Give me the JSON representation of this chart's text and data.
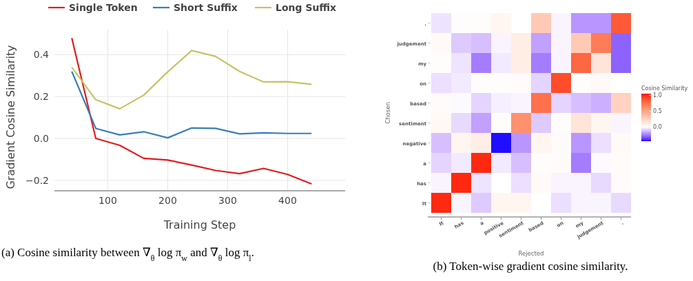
{
  "chart_data": [
    {
      "type": "line",
      "xlabel": "Training Step",
      "ylabel": "Gradient Cosine Similarity",
      "x": [
        40,
        80,
        120,
        160,
        200,
        240,
        280,
        320,
        360,
        400,
        440
      ],
      "xlim": [
        11,
        496
      ],
      "xticks": [
        100,
        200,
        300,
        400
      ],
      "ylim": [
        -0.25,
        0.52
      ],
      "yticks": [
        {
          "value": -0.2,
          "label": "−0.2"
        },
        {
          "value": 0,
          "label": "0.0"
        },
        {
          "value": 0.2,
          "label": "0.2"
        },
        {
          "value": 0.4,
          "label": "0.4"
        }
      ],
      "grid": true,
      "legend": "top",
      "line_style": "solid",
      "marker": "none",
      "series": [
        {
          "name": "Single Token",
          "color": "#e41a1c",
          "values": [
            0.48,
            0.0,
            -0.033,
            -0.095,
            -0.103,
            -0.127,
            -0.153,
            -0.168,
            -0.143,
            -0.172,
            -0.217
          ]
        },
        {
          "name": "Short Suffix",
          "color": "#377eb8",
          "values": [
            0.32,
            0.048,
            0.017,
            0.032,
            0.003,
            0.05,
            0.048,
            0.022,
            0.027,
            0.024,
            0.024
          ]
        },
        {
          "name": "Long Suffix",
          "color": "#c8c264",
          "values": [
            0.34,
            0.185,
            0.142,
            0.207,
            0.318,
            0.42,
            0.392,
            0.32,
            0.27,
            0.271,
            0.259
          ]
        }
      ],
      "annotations": [
        "(a) Cosine similarity between ∇$_{θ}$ log π$_{w}$ and ∇$_{θ}$ log π$_{l}$."
      ]
    },
    {
      "type": "heatmap",
      "xlabel": "Rejected",
      "ylabel": "Chosen",
      "clabel": "Cosine Similarity",
      "categories": [
        "It",
        "has",
        "a",
        "positive",
        "sentiment",
        "based",
        "on",
        "my",
        "judgement",
        "."
      ],
      "y_categories": [
        ".",
        "judgement",
        "my",
        "on",
        "based",
        "sentiment",
        "negative",
        "a",
        "has",
        "It"
      ],
      "clim": [
        -0.45,
        1.05
      ],
      "cticks": [
        {
          "value": 0,
          "label": "0.0"
        },
        {
          "value": 0.5,
          "label": "0.5"
        },
        {
          "value": 1,
          "label": "1.0"
        }
      ],
      "cells": [
        [
          -0.05,
          0.01,
          0.01,
          0.05,
          0,
          0.3,
          -0.02,
          -0.2,
          -0.2,
          0.85
        ],
        [
          0.03,
          -0.1,
          -0.12,
          -0.02,
          0.1,
          -0.18,
          -0.02,
          0.3,
          0.7,
          -0.3
        ],
        [
          0.01,
          -0.05,
          -0.25,
          -0.04,
          0.1,
          -0.25,
          -0.02,
          0.8,
          0.15,
          -0.3
        ],
        [
          -0.06,
          -0.04,
          0.01,
          0.01,
          0.02,
          -0.08,
          0.9,
          0.01,
          0.03,
          0
        ],
        [
          0.02,
          -0.01,
          -0.08,
          -0.03,
          -0.02,
          0.75,
          -0.08,
          -0.12,
          -0.15,
          0.25
        ],
        [
          0.04,
          -0.07,
          -0.18,
          0.01,
          0.6,
          -0.1,
          0.01,
          0.15,
          0.05,
          -0.02
        ],
        [
          -0.12,
          0.05,
          0.1,
          -0.44,
          -0.2,
          0.05,
          0.02,
          -0.2,
          -0.06,
          0.03
        ],
        [
          -0.08,
          -0.04,
          1.0,
          -0.04,
          -0.12,
          0.01,
          0.02,
          -0.25,
          -0.01,
          0.02
        ],
        [
          -0.02,
          1.0,
          -0.05,
          0,
          -0.06,
          0.03,
          -0.02,
          -0.02,
          -0.07,
          0.02
        ],
        [
          1.0,
          -0.02,
          -0.1,
          0.05,
          0.05,
          0,
          -0.06,
          -0.02,
          -0.02,
          -0.07
        ]
      ],
      "annotations": [
        "(b) Token-wise gradient cosine similarity."
      ]
    }
  ]
}
